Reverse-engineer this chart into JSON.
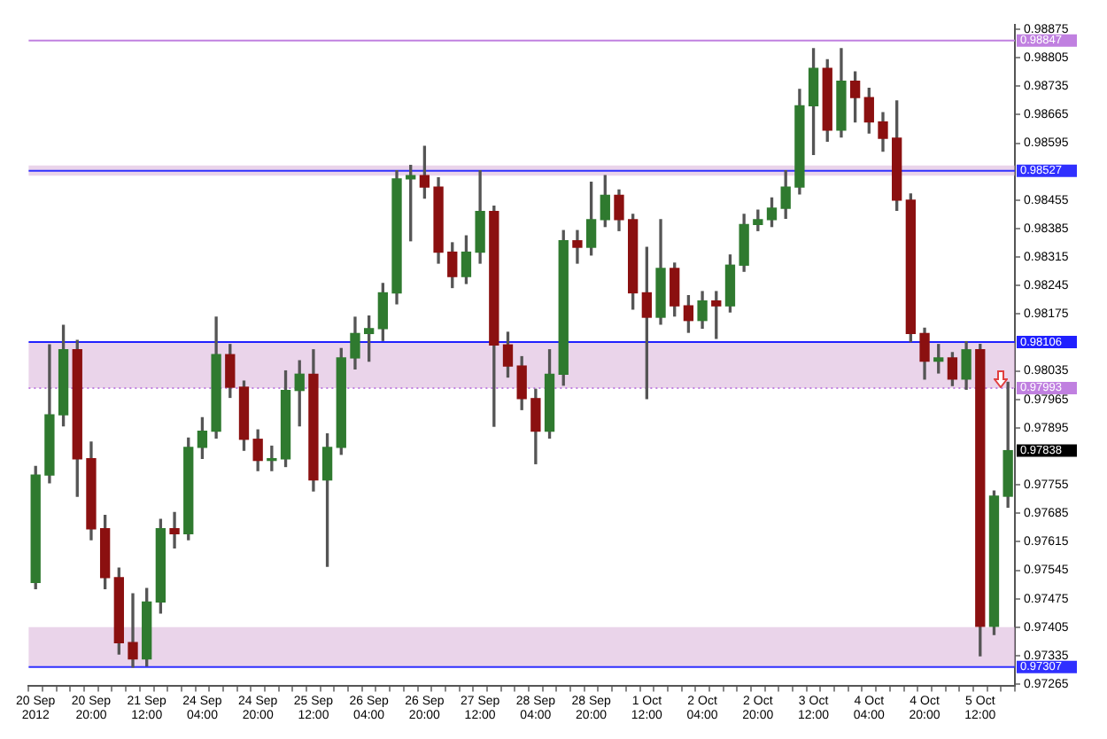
{
  "chart_data": {
    "type": "candlestick",
    "categories": [
      "20 Sep 2012",
      null,
      null,
      null,
      "20 Sep 20:00",
      null,
      null,
      null,
      "21 Sep 12:00",
      null,
      null,
      null,
      "24 Sep 04:00",
      null,
      null,
      null,
      "24 Sep 20:00",
      null,
      null,
      null,
      "25 Sep 12:00",
      null,
      null,
      null,
      "26 Sep 04:00",
      null,
      null,
      null,
      "26 Sep 20:00",
      null,
      null,
      null,
      "27 Sep 12:00",
      null,
      null,
      null,
      "28 Sep 04:00",
      null,
      null,
      null,
      "28 Sep 20:00",
      null,
      null,
      null,
      "1 Oct 12:00",
      null,
      null,
      null,
      "2 Oct 04:00",
      null,
      null,
      null,
      "2 Oct 20:00",
      null,
      null,
      null,
      "3 Oct 12:00",
      null,
      null,
      null,
      "4 Oct 04:00",
      null,
      null,
      null,
      "4 Oct 20:00",
      null,
      null,
      null,
      "5 Oct 12:00",
      null,
      null
    ],
    "ohlc": [
      [
        0.97515,
        0.978,
        0.975,
        0.97779
      ],
      [
        0.97779,
        0.98099,
        0.9776,
        0.97927
      ],
      [
        0.97927,
        0.98147,
        0.979,
        0.98087
      ],
      [
        0.98087,
        0.9811,
        0.97727,
        0.97819
      ],
      [
        0.97819,
        0.9786,
        0.9762,
        0.97647
      ],
      [
        0.97647,
        0.9768,
        0.975,
        0.97527
      ],
      [
        0.97527,
        0.9755,
        0.97339,
        0.97367
      ],
      [
        0.97367,
        0.97487,
        0.97307,
        0.97327
      ],
      [
        0.97327,
        0.975,
        0.9731,
        0.97467
      ],
      [
        0.97467,
        0.9767,
        0.9744,
        0.97647
      ],
      [
        0.97647,
        0.97687,
        0.976,
        0.97635
      ],
      [
        0.97635,
        0.9787,
        0.9762,
        0.97847
      ],
      [
        0.97847,
        0.9792,
        0.9782,
        0.97887
      ],
      [
        0.97887,
        0.98167,
        0.9787,
        0.98075
      ],
      [
        0.98075,
        0.981,
        0.9797,
        0.97995
      ],
      [
        0.97995,
        0.9801,
        0.9784,
        0.97867
      ],
      [
        0.97867,
        0.9789,
        0.9779,
        0.97815
      ],
      [
        0.97815,
        0.9785,
        0.9779,
        0.97819
      ],
      [
        0.97819,
        0.98035,
        0.978,
        0.97987
      ],
      [
        0.97987,
        0.9806,
        0.979,
        0.98027
      ],
      [
        0.98027,
        0.98087,
        0.9774,
        0.97767
      ],
      [
        0.97767,
        0.9788,
        0.97555,
        0.97847
      ],
      [
        0.97847,
        0.9809,
        0.9783,
        0.98067
      ],
      [
        0.98067,
        0.98167,
        0.9804,
        0.98127
      ],
      [
        0.98127,
        0.9817,
        0.98059,
        0.98139
      ],
      [
        0.98139,
        0.9825,
        0.9811,
        0.98227
      ],
      [
        0.98227,
        0.98527,
        0.982,
        0.98507
      ],
      [
        0.98507,
        0.9854,
        0.98355,
        0.98515
      ],
      [
        0.98515,
        0.98587,
        0.9846,
        0.98487
      ],
      [
        0.98487,
        0.9851,
        0.983,
        0.98327
      ],
      [
        0.98327,
        0.9835,
        0.9824,
        0.98267
      ],
      [
        0.98267,
        0.98367,
        0.9825,
        0.98327
      ],
      [
        0.98327,
        0.98527,
        0.983,
        0.98427
      ],
      [
        0.98427,
        0.9844,
        0.97899,
        0.98099
      ],
      [
        0.98099,
        0.9813,
        0.9802,
        0.98047
      ],
      [
        0.98047,
        0.9807,
        0.9794,
        0.97967
      ],
      [
        0.97967,
        0.9799,
        0.97807,
        0.97887
      ],
      [
        0.97887,
        0.98087,
        0.9787,
        0.98027
      ],
      [
        0.98027,
        0.9838,
        0.98,
        0.98355
      ],
      [
        0.98355,
        0.9838,
        0.983,
        0.98339
      ],
      [
        0.98339,
        0.98499,
        0.9832,
        0.98407
      ],
      [
        0.98407,
        0.98515,
        0.9839,
        0.98467
      ],
      [
        0.98467,
        0.9848,
        0.9838,
        0.98407
      ],
      [
        0.98407,
        0.9842,
        0.98187,
        0.98227
      ],
      [
        0.98227,
        0.98339,
        0.97967,
        0.98167
      ],
      [
        0.98167,
        0.98407,
        0.9815,
        0.98287
      ],
      [
        0.98287,
        0.983,
        0.9817,
        0.98195
      ],
      [
        0.98195,
        0.9822,
        0.9813,
        0.98159
      ],
      [
        0.98159,
        0.9823,
        0.9814,
        0.98207
      ],
      [
        0.98207,
        0.9823,
        0.98115,
        0.98195
      ],
      [
        0.98195,
        0.9832,
        0.9818,
        0.98295
      ],
      [
        0.98295,
        0.9842,
        0.9828,
        0.98395
      ],
      [
        0.98395,
        0.9843,
        0.9838,
        0.98407
      ],
      [
        0.98407,
        0.9846,
        0.9839,
        0.98435
      ],
      [
        0.98435,
        0.98527,
        0.9841,
        0.98487
      ],
      [
        0.98487,
        0.98727,
        0.9847,
        0.98687
      ],
      [
        0.98687,
        0.98827,
        0.98567,
        0.98779
      ],
      [
        0.98779,
        0.988,
        0.986,
        0.98627
      ],
      [
        0.98627,
        0.98827,
        0.9861,
        0.98747
      ],
      [
        0.98747,
        0.9877,
        0.98647,
        0.98707
      ],
      [
        0.98707,
        0.9873,
        0.9862,
        0.98647
      ],
      [
        0.98647,
        0.9867,
        0.98575,
        0.98607
      ],
      [
        0.98607,
        0.98699,
        0.9843,
        0.98455
      ],
      [
        0.98455,
        0.9847,
        0.98107,
        0.98127
      ],
      [
        0.98127,
        0.9814,
        0.98015,
        0.98059
      ],
      [
        0.98059,
        0.981,
        0.9803,
        0.98067
      ],
      [
        0.98067,
        0.9808,
        0.97999,
        0.98015
      ],
      [
        0.98015,
        0.98107,
        0.9799,
        0.98087
      ],
      [
        0.98087,
        0.981,
        0.97335,
        0.97407
      ],
      [
        0.97407,
        0.9774,
        0.97387,
        0.97727
      ],
      [
        0.97727,
        0.98007,
        0.977,
        0.97839
      ]
    ],
    "ylim": [
      0.9726,
      0.98885
    ],
    "yticks": [
      0.98875,
      0.98805,
      0.98735,
      0.98665,
      0.98595,
      0.98455,
      0.98385,
      0.98315,
      0.98245,
      0.98175,
      0.98035,
      0.97965,
      0.97895,
      0.97755,
      0.97685,
      0.97615,
      0.97545,
      0.97475,
      0.97405,
      0.97335,
      0.97265
    ],
    "ref_lines": [
      {
        "axis": "y",
        "value": 0.98847,
        "label": "0.98847",
        "color": "#c080e0"
      },
      {
        "axis": "y",
        "value": 0.98527,
        "label": "0.98527",
        "color": "#3030ff"
      },
      {
        "axis": "y",
        "value": 0.98106,
        "label": "0.98106",
        "color": "#2020ff"
      },
      {
        "axis": "y",
        "value": 0.97993,
        "label": "0.97993",
        "color": "#c080e0",
        "line_style": "dotted"
      },
      {
        "axis": "y",
        "value": 0.97307,
        "label": "0.97307",
        "color": "#3030ff"
      }
    ],
    "bands": [
      {
        "axis": "y",
        "from": 0.98515,
        "to": 0.9854,
        "color": "#d8b0d8"
      },
      {
        "axis": "y",
        "from": 0.97993,
        "to": 0.98106,
        "color": "#d8b0d8"
      },
      {
        "axis": "y",
        "from": 0.97307,
        "to": 0.97405,
        "color": "#d8b0d8"
      }
    ],
    "annotations": [
      "0.97838"
    ],
    "grid": false,
    "legend": false
  }
}
